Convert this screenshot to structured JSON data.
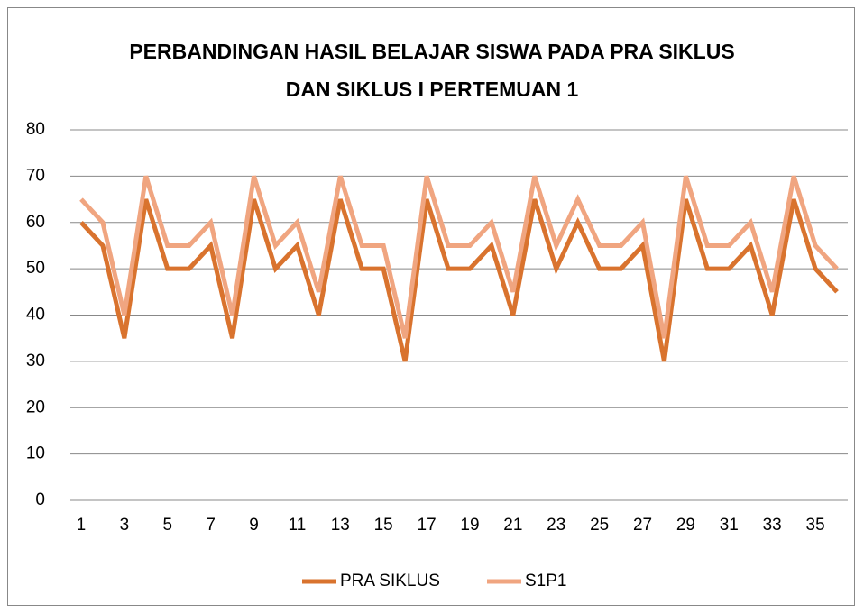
{
  "chart_data": {
    "type": "line",
    "title": "PERBANDINGAN HASIL BELAJAR SISWA PADA PRA SIKLUS DAN SIKLUS I PERTEMUAN 1",
    "categories": [
      1,
      null,
      3,
      null,
      5,
      null,
      7,
      null,
      9,
      null,
      11,
      null,
      13,
      null,
      15,
      null,
      17,
      null,
      19,
      null,
      21,
      null,
      23,
      null,
      25,
      null,
      27,
      null,
      29,
      null,
      31,
      null,
      33,
      null,
      35,
      null
    ],
    "series": [
      {
        "name": "PRA SIKLUS",
        "color": "#d9732e",
        "values": [
          60,
          55,
          35,
          65,
          50,
          50,
          55,
          35,
          65,
          50,
          55,
          40,
          65,
          50,
          50,
          30,
          65,
          50,
          50,
          55,
          40,
          65,
          50,
          60,
          50,
          50,
          55,
          30,
          65,
          50,
          50,
          55,
          40,
          65,
          50,
          45
        ]
      },
      {
        "name": "S1P1",
        "color": "#f0a580",
        "values": [
          65,
          60,
          40,
          70,
          55,
          55,
          60,
          40,
          70,
          55,
          60,
          45,
          70,
          55,
          55,
          35,
          70,
          55,
          55,
          60,
          45,
          70,
          55,
          65,
          55,
          55,
          60,
          35,
          70,
          55,
          55,
          60,
          45,
          70,
          55,
          50
        ]
      }
    ],
    "ylim": [
      0,
      80
    ],
    "yticks": [
      0,
      10,
      20,
      30,
      40,
      50,
      60,
      70,
      80
    ],
    "grid": true,
    "legend": "bottom"
  }
}
